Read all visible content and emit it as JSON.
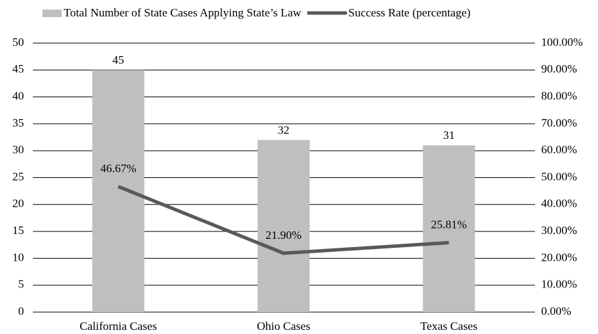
{
  "chart_data": {
    "type": "bar",
    "categories": [
      "California Cases",
      "Ohio Cases",
      "Texas Cases"
    ],
    "series": [
      {
        "name": "Total Number of State Cases Applying State’s Law",
        "type": "bar",
        "color": "#bfbfbf",
        "values": [
          45,
          32,
          31
        ]
      },
      {
        "name": "Success Rate (percentage)",
        "type": "line",
        "axis": "y2",
        "color": "#595959",
        "values": [
          46.67,
          21.9,
          25.81
        ],
        "value_labels": [
          "46.67%",
          "21.90%",
          "25.81%"
        ]
      }
    ],
    "ylim": [
      0,
      50
    ],
    "yticks": [
      0,
      5,
      10,
      15,
      20,
      25,
      30,
      35,
      40,
      45,
      50
    ],
    "y2lim": [
      0,
      100
    ],
    "y2ticks": [
      {
        "value": 0,
        "label": "0.00%"
      },
      {
        "value": 10,
        "label": "10.00%"
      },
      {
        "value": 20,
        "label": "20.00%"
      },
      {
        "value": 30,
        "label": "30.00%"
      },
      {
        "value": 40,
        "label": "40.00%"
      },
      {
        "value": 50,
        "label": "50.00%"
      },
      {
        "value": 60,
        "label": "60.00%"
      },
      {
        "value": 70,
        "label": "70.00%"
      },
      {
        "value": 80,
        "label": "80.00%"
      },
      {
        "value": 90,
        "label": "90.00%"
      },
      {
        "value": 100,
        "label": "100.00%"
      }
    ],
    "grid": true,
    "legend": "top"
  }
}
